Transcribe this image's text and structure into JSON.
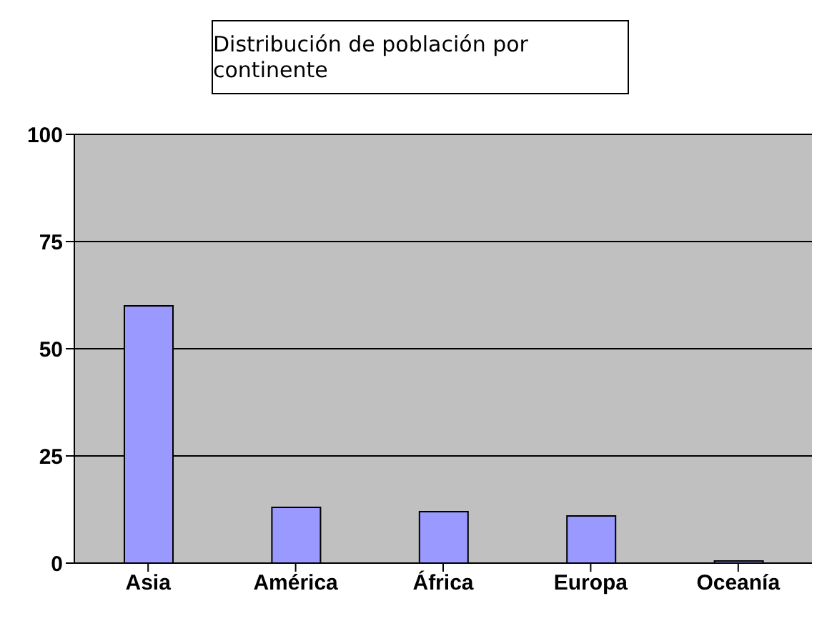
{
  "chart_data": {
    "type": "bar",
    "title": "Distribución de población por continente",
    "categories": [
      "Asia",
      "América",
      "África",
      "Europa",
      "Oceanía"
    ],
    "values": [
      60,
      13,
      12,
      11,
      0.5
    ],
    "color": "#9999ff",
    "ylim": [
      0,
      100
    ],
    "yticks": [
      0,
      25,
      50,
      75,
      100
    ],
    "grid": "y"
  }
}
